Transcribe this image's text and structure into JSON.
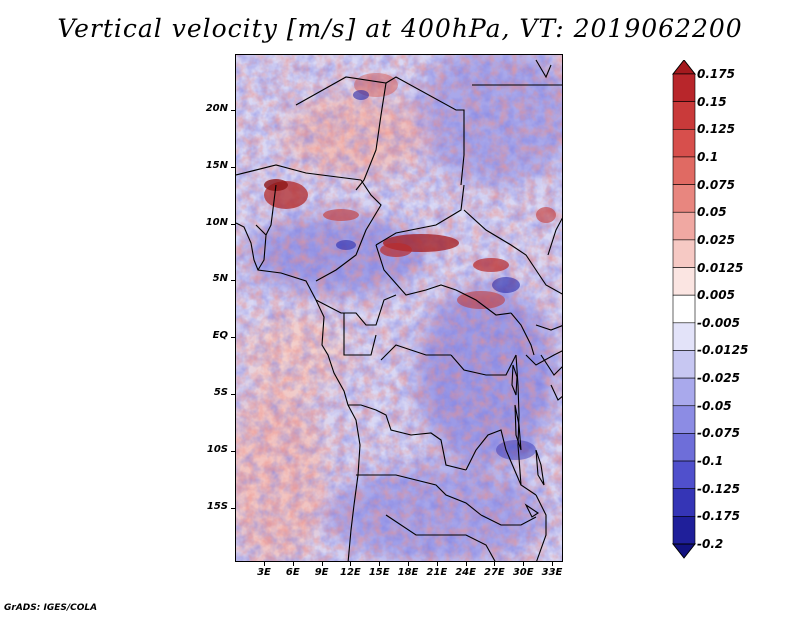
{
  "title": "Vertical velocity [m/s] at 400hPa, VT: 2019062200",
  "footer": "GrADS: IGES/COLA",
  "map": {
    "region": "Central Africa",
    "lat_labels": [
      "20N",
      "15N",
      "10N",
      "5N",
      "EQ",
      "5S",
      "10S",
      "15S"
    ],
    "lon_labels": [
      "3E",
      "6E",
      "9E",
      "12E",
      "15E",
      "18E",
      "21E",
      "24E",
      "27E",
      "30E",
      "33E"
    ],
    "lat_range": [
      -20,
      25
    ],
    "lon_range": [
      0,
      35
    ]
  },
  "colorbar": {
    "labels": [
      "0.175",
      "0.15",
      "0.125",
      "0.1",
      "0.075",
      "0.05",
      "0.025",
      "0.0125",
      "0.005",
      "-0.005",
      "-0.0125",
      "-0.025",
      "-0.05",
      "-0.075",
      "-0.1",
      "-0.125",
      "-0.175",
      "-0.2"
    ],
    "colors": [
      "#a41a1e",
      "#b8262b",
      "#c93a3a",
      "#d74f4c",
      "#e06a63",
      "#e8867f",
      "#f0a8a2",
      "#f6c9c4",
      "#fbe5e2",
      "#ffffff",
      "#e3e3f9",
      "#c7c7f2",
      "#a9a9ec",
      "#8c8ce4",
      "#6e6ed9",
      "#5050cc",
      "#3535b6",
      "#1f1f9a",
      "#121280"
    ]
  }
}
